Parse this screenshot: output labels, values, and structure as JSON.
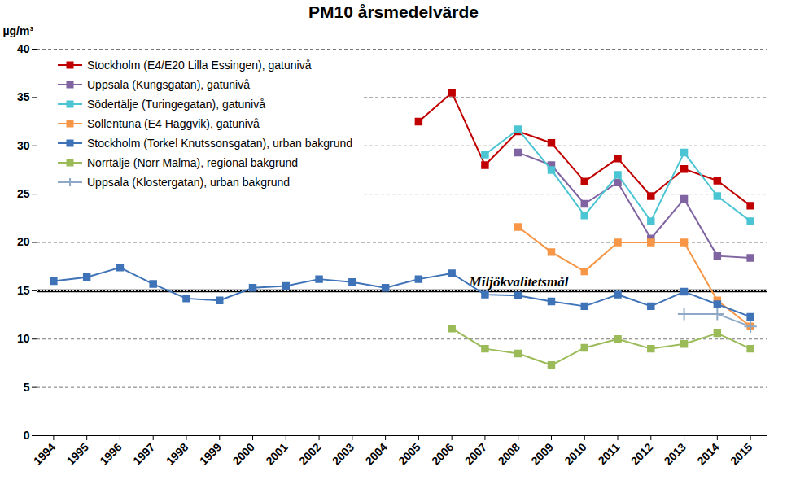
{
  "chart_data": {
    "type": "line",
    "title": "PM10 årsmedelvärde",
    "ylabel": "µg/m³",
    "x": [
      1994,
      1995,
      1996,
      1997,
      1998,
      1999,
      2000,
      2001,
      2002,
      2003,
      2004,
      2005,
      2006,
      2007,
      2008,
      2009,
      2010,
      2011,
      2012,
      2013,
      2014,
      2015
    ],
    "xlim": [
      1993.5,
      2015.5
    ],
    "xticks": [
      1994,
      1995,
      1996,
      1997,
      1998,
      1999,
      2000,
      2001,
      2002,
      2003,
      2004,
      2005,
      2006,
      2007,
      2008,
      2009,
      2010,
      2011,
      2012,
      2013,
      2014,
      2015
    ],
    "ylim": [
      0,
      40
    ],
    "yticks": [
      0,
      5,
      10,
      15,
      20,
      25,
      30,
      35,
      40
    ],
    "grid": true,
    "legend": "top-left",
    "target": {
      "value": 15,
      "label": "Miljökvalitetsmål"
    },
    "series": [
      {
        "name": "Stockholm (E4/E20 Lilla Essingen), gatunivå",
        "color": "#c00000",
        "marker": "square",
        "values": [
          null,
          null,
          null,
          null,
          null,
          null,
          null,
          null,
          null,
          null,
          null,
          32.5,
          35.5,
          28.0,
          31.5,
          30.3,
          26.3,
          28.7,
          24.8,
          27.6,
          26.4,
          23.8
        ]
      },
      {
        "name": "Uppsala (Kungsgatan), gatunivå",
        "color": "#8064a2",
        "marker": "square",
        "values": [
          null,
          null,
          null,
          null,
          null,
          null,
          null,
          null,
          null,
          null,
          null,
          null,
          null,
          null,
          29.3,
          28.0,
          24.0,
          26.2,
          20.4,
          24.5,
          18.6,
          18.4
        ]
      },
      {
        "name": "Södertälje (Turingegatan), gatunivå",
        "color": "#4bc5d3",
        "marker": "square",
        "values": [
          null,
          null,
          null,
          null,
          null,
          null,
          null,
          null,
          null,
          null,
          null,
          null,
          null,
          29.1,
          31.7,
          27.5,
          22.8,
          27.0,
          22.2,
          29.3,
          24.8,
          22.2
        ]
      },
      {
        "name": "Sollentuna (E4 Häggvik), gatunivå",
        "color": "#f79646",
        "marker": "square",
        "values": [
          null,
          null,
          null,
          null,
          null,
          null,
          null,
          null,
          null,
          null,
          null,
          null,
          null,
          null,
          21.6,
          19.0,
          17.0,
          20.0,
          20.0,
          20.0,
          14.0,
          11.3
        ]
      },
      {
        "name": "Stockholm (Torkel Knutssonsgatan), urban bakgrund",
        "color": "#3f73b8",
        "marker": "square",
        "values": [
          16.0,
          16.4,
          17.4,
          15.7,
          14.2,
          14.0,
          15.3,
          15.5,
          16.2,
          15.9,
          15.3,
          16.2,
          16.8,
          14.6,
          14.5,
          13.9,
          13.4,
          14.6,
          13.4,
          14.9,
          13.6,
          12.3
        ]
      },
      {
        "name": "Norrtälje (Norr Malma), regional bakgrund",
        "color": "#9bbb59",
        "marker": "square",
        "values": [
          null,
          null,
          null,
          null,
          null,
          null,
          null,
          null,
          null,
          null,
          null,
          null,
          11.1,
          9.0,
          8.5,
          7.3,
          9.1,
          10.0,
          9.0,
          9.5,
          10.6,
          9.0
        ]
      },
      {
        "name": "Uppsala (Klostergatan), urban bakgrund",
        "color": "#8ea9c8",
        "marker": "plus",
        "values": [
          null,
          null,
          null,
          null,
          null,
          null,
          null,
          null,
          null,
          null,
          null,
          null,
          null,
          null,
          null,
          null,
          null,
          null,
          null,
          12.6,
          12.6,
          11.3
        ]
      }
    ]
  }
}
